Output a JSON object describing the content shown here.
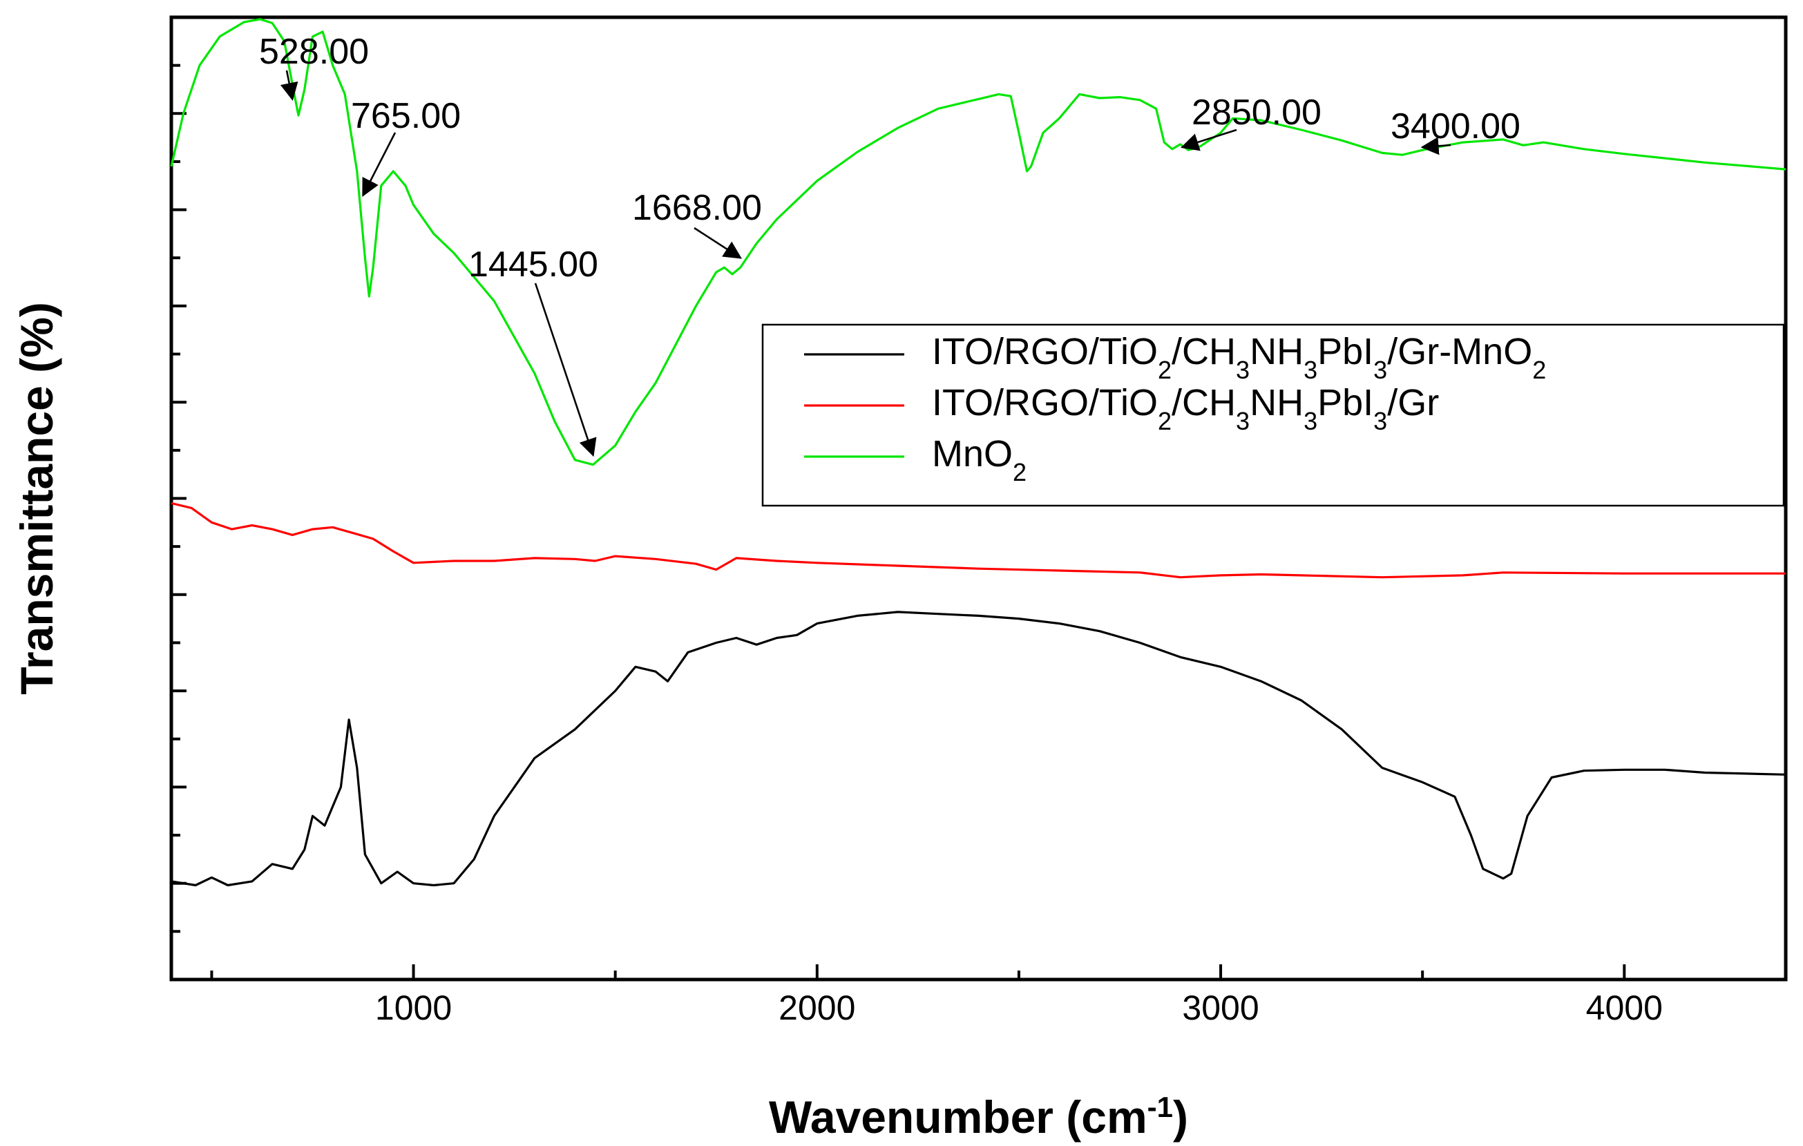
{
  "chart_data": {
    "type": "line",
    "title": "",
    "xlabel": "Wavenumber (cm-1)",
    "xlabel_parts": {
      "main": "Wavenumber (cm",
      "sup": "-1",
      "tail": ")"
    },
    "ylabel": "Transmittance (%)",
    "xlim": [
      400,
      4400
    ],
    "ylim": [
      0,
      100
    ],
    "x_ticks": [
      1000,
      2000,
      3000,
      4000
    ],
    "x_tick_labels": [
      "1000",
      "2000",
      "3000",
      "4000"
    ],
    "y_tick_labels_shown": false,
    "grid": false,
    "legend_position": "right-middle",
    "series": [
      {
        "name": "ITO/RGO/TiO2/CH3NH3PbI3/Gr-MnO2",
        "legend_parts": [
          [
            "ITO/RGO/TiO",
            "n"
          ],
          [
            "2",
            "sub"
          ],
          [
            "/CH",
            "n"
          ],
          [
            "3",
            "sub"
          ],
          [
            "NH",
            "n"
          ],
          [
            "3",
            "sub"
          ],
          [
            "PbI",
            "n"
          ],
          [
            "3",
            "sub"
          ],
          [
            "/Gr-MnO",
            "n"
          ],
          [
            "2",
            "sub"
          ]
        ],
        "color": "#000000",
        "points": [
          [
            400,
            10.2
          ],
          [
            460,
            9.8
          ],
          [
            500,
            10.6
          ],
          [
            540,
            9.8
          ],
          [
            600,
            10.2
          ],
          [
            650,
            12.0
          ],
          [
            700,
            11.5
          ],
          [
            730,
            13.5
          ],
          [
            750,
            17.0
          ],
          [
            780,
            16.0
          ],
          [
            820,
            20.0
          ],
          [
            840,
            27.0
          ],
          [
            860,
            22.0
          ],
          [
            880,
            13.0
          ],
          [
            920,
            10.0
          ],
          [
            960,
            11.2
          ],
          [
            1000,
            10.0
          ],
          [
            1050,
            9.8
          ],
          [
            1100,
            10.0
          ],
          [
            1150,
            12.5
          ],
          [
            1200,
            17.0
          ],
          [
            1300,
            23.0
          ],
          [
            1400,
            26.0
          ],
          [
            1500,
            30.0
          ],
          [
            1550,
            32.5
          ],
          [
            1600,
            32.0
          ],
          [
            1630,
            31.0
          ],
          [
            1680,
            34.0
          ],
          [
            1750,
            35.0
          ],
          [
            1800,
            35.5
          ],
          [
            1850,
            34.8
          ],
          [
            1900,
            35.5
          ],
          [
            1950,
            35.8
          ],
          [
            2000,
            37.0
          ],
          [
            2100,
            37.8
          ],
          [
            2200,
            38.2
          ],
          [
            2300,
            38.0
          ],
          [
            2400,
            37.8
          ],
          [
            2500,
            37.5
          ],
          [
            2600,
            37.0
          ],
          [
            2700,
            36.2
          ],
          [
            2800,
            35.0
          ],
          [
            2900,
            33.5
          ],
          [
            3000,
            32.5
          ],
          [
            3100,
            31.0
          ],
          [
            3200,
            29.0
          ],
          [
            3300,
            26.0
          ],
          [
            3400,
            22.0
          ],
          [
            3500,
            20.5
          ],
          [
            3580,
            19.0
          ],
          [
            3620,
            15.0
          ],
          [
            3650,
            11.5
          ],
          [
            3700,
            10.5
          ],
          [
            3720,
            11.0
          ],
          [
            3760,
            17.0
          ],
          [
            3820,
            21.0
          ],
          [
            3900,
            21.7
          ],
          [
            4000,
            21.8
          ],
          [
            4100,
            21.8
          ],
          [
            4200,
            21.5
          ],
          [
            4300,
            21.4
          ],
          [
            4400,
            21.3
          ]
        ]
      },
      {
        "name": "ITO/RGO/TiO2/CH3NH3PbI3/Gr",
        "legend_parts": [
          [
            "ITO/RGO/TiO",
            "n"
          ],
          [
            "2",
            "sub"
          ],
          [
            "/CH",
            "n"
          ],
          [
            "3",
            "sub"
          ],
          [
            "NH",
            "n"
          ],
          [
            "3",
            "sub"
          ],
          [
            "PbI",
            "n"
          ],
          [
            "3",
            "sub"
          ],
          [
            "/Gr",
            "n"
          ]
        ],
        "color": "#ff0000",
        "points": [
          [
            400,
            49.5
          ],
          [
            450,
            49.0
          ],
          [
            500,
            47.5
          ],
          [
            550,
            46.8
          ],
          [
            600,
            47.2
          ],
          [
            650,
            46.8
          ],
          [
            700,
            46.2
          ],
          [
            750,
            46.8
          ],
          [
            800,
            47.0
          ],
          [
            850,
            46.4
          ],
          [
            900,
            45.8
          ],
          [
            950,
            44.5
          ],
          [
            1000,
            43.3
          ],
          [
            1100,
            43.5
          ],
          [
            1200,
            43.5
          ],
          [
            1300,
            43.8
          ],
          [
            1400,
            43.7
          ],
          [
            1450,
            43.5
          ],
          [
            1500,
            44.0
          ],
          [
            1600,
            43.7
          ],
          [
            1700,
            43.2
          ],
          [
            1750,
            42.6
          ],
          [
            1800,
            43.8
          ],
          [
            1900,
            43.5
          ],
          [
            2000,
            43.3
          ],
          [
            2200,
            43.0
          ],
          [
            2400,
            42.7
          ],
          [
            2600,
            42.5
          ],
          [
            2800,
            42.3
          ],
          [
            2900,
            41.8
          ],
          [
            3000,
            42.0
          ],
          [
            3100,
            42.1
          ],
          [
            3200,
            42.0
          ],
          [
            3400,
            41.8
          ],
          [
            3600,
            42.0
          ],
          [
            3700,
            42.3
          ],
          [
            4000,
            42.2
          ],
          [
            4400,
            42.2
          ]
        ]
      },
      {
        "name": "MnO2",
        "legend_parts": [
          [
            "MnO",
            "n"
          ],
          [
            "2",
            "sub"
          ]
        ],
        "color": "#00e600",
        "points": [
          [
            400,
            84.5
          ],
          [
            430,
            90.0
          ],
          [
            470,
            95.0
          ],
          [
            520,
            98.0
          ],
          [
            580,
            99.5
          ],
          [
            620,
            99.8
          ],
          [
            650,
            99.4
          ],
          [
            680,
            97.5
          ],
          [
            700,
            93.0
          ],
          [
            715,
            89.8
          ],
          [
            730,
            92.5
          ],
          [
            750,
            98.0
          ],
          [
            775,
            98.5
          ],
          [
            800,
            95.0
          ],
          [
            830,
            92.0
          ],
          [
            860,
            84.0
          ],
          [
            880,
            75.0
          ],
          [
            890,
            71.0
          ],
          [
            900,
            74.0
          ],
          [
            920,
            82.5
          ],
          [
            950,
            84.0
          ],
          [
            980,
            82.5
          ],
          [
            1000,
            80.5
          ],
          [
            1050,
            77.5
          ],
          [
            1100,
            75.5
          ],
          [
            1200,
            70.5
          ],
          [
            1300,
            63.0
          ],
          [
            1350,
            58.0
          ],
          [
            1400,
            54.0
          ],
          [
            1445,
            53.5
          ],
          [
            1500,
            55.5
          ],
          [
            1550,
            59.0
          ],
          [
            1600,
            62.0
          ],
          [
            1650,
            66.0
          ],
          [
            1700,
            70.0
          ],
          [
            1750,
            73.5
          ],
          [
            1770,
            74.0
          ],
          [
            1790,
            73.3
          ],
          [
            1810,
            74.0
          ],
          [
            1850,
            76.5
          ],
          [
            1900,
            79.0
          ],
          [
            2000,
            83.0
          ],
          [
            2100,
            86.0
          ],
          [
            2200,
            88.5
          ],
          [
            2300,
            90.5
          ],
          [
            2400,
            91.5
          ],
          [
            2450,
            92.0
          ],
          [
            2480,
            91.8
          ],
          [
            2500,
            88.0
          ],
          [
            2520,
            84.0
          ],
          [
            2530,
            84.5
          ],
          [
            2560,
            88.0
          ],
          [
            2600,
            89.5
          ],
          [
            2650,
            92.0
          ],
          [
            2700,
            91.6
          ],
          [
            2750,
            91.7
          ],
          [
            2800,
            91.4
          ],
          [
            2840,
            90.5
          ],
          [
            2860,
            87.0
          ],
          [
            2880,
            86.3
          ],
          [
            2900,
            86.8
          ],
          [
            2920,
            86.2
          ],
          [
            2950,
            86.6
          ],
          [
            3000,
            88.0
          ],
          [
            3030,
            89.5
          ],
          [
            3100,
            89.3
          ],
          [
            3200,
            88.3
          ],
          [
            3300,
            87.2
          ],
          [
            3400,
            85.9
          ],
          [
            3450,
            85.7
          ],
          [
            3500,
            86.2
          ],
          [
            3600,
            87.0
          ],
          [
            3700,
            87.3
          ],
          [
            3750,
            86.7
          ],
          [
            3800,
            87.0
          ],
          [
            3900,
            86.3
          ],
          [
            4000,
            85.8
          ],
          [
            4200,
            84.9
          ],
          [
            4400,
            84.2
          ]
        ]
      }
    ],
    "annotations": [
      {
        "label": "528.00",
        "x": 700,
        "y": 91.5
      },
      {
        "label": "765.00",
        "x": 875,
        "y": 81.5
      },
      {
        "label": "1445.00",
        "x": 1445,
        "y": 54.5
      },
      {
        "label": "1668.00",
        "x": 1810,
        "y": 75.0
      },
      {
        "label": "2850.00",
        "x": 2905,
        "y": 86.5
      },
      {
        "label": "3400.00",
        "x": 3500,
        "y": 86.5
      }
    ]
  }
}
